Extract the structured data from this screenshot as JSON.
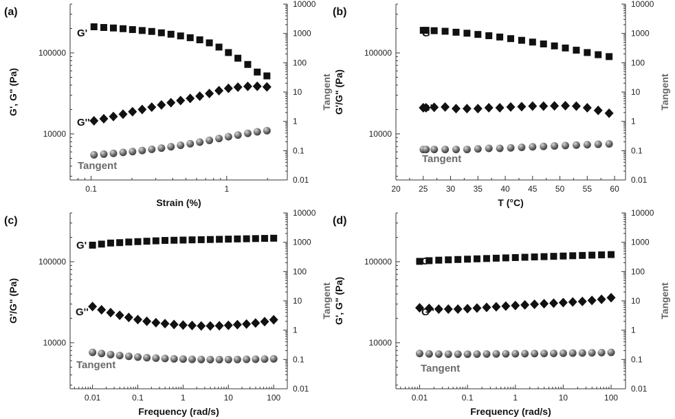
{
  "chart_data": [
    {
      "panel_label": "(a)",
      "type": "scatter",
      "xlabel": "Strain (%)",
      "ylabel": "G', G\" (Pa)",
      "y2label": "Tangent",
      "xscale": "log",
      "yscale": "log",
      "y2scale": "log",
      "xlim": [
        0.07,
        2.8
      ],
      "ylim": [
        2700,
        400000
      ],
      "y2lim": [
        0.01,
        10000
      ],
      "xticks": [
        0.1,
        1
      ],
      "xtick_labels": [
        "0.1",
        "1"
      ],
      "yticks": [
        10000,
        100000
      ],
      "ytick_labels": [
        "10000",
        "100000"
      ],
      "y2ticks": [
        0.01,
        0.1,
        1,
        10,
        100,
        1000,
        10000
      ],
      "y2tick_labels": [
        "0.01",
        "0.1",
        "1",
        "10",
        "100",
        "1000",
        "10000"
      ],
      "x": [
        0.105,
        0.124,
        0.146,
        0.172,
        0.202,
        0.238,
        0.28,
        0.33,
        0.388,
        0.457,
        0.538,
        0.633,
        0.745,
        0.877,
        1.03,
        1.21,
        1.43,
        1.68,
        1.98
      ],
      "series": [
        {
          "name": "G'",
          "marker": "square",
          "axis": "left",
          "values": [
            210000,
            206000,
            203000,
            199000,
            194000,
            189000,
            184000,
            177000,
            170000,
            162000,
            154000,
            145000,
            133000,
            118000,
            101000,
            86000,
            72000,
            58000,
            52000
          ]
        },
        {
          "name": "G''",
          "marker": "diamond",
          "axis": "left",
          "values": [
            14500,
            15400,
            16400,
            17500,
            18800,
            20000,
            21400,
            22800,
            24300,
            25800,
            27400,
            29200,
            31500,
            34200,
            36500,
            37800,
            38600,
            38700,
            38000
          ]
        },
        {
          "name": "Tangent",
          "marker": "sphere",
          "axis": "right",
          "values": [
            0.072,
            0.076,
            0.081,
            0.087,
            0.093,
            0.101,
            0.111,
            0.122,
            0.136,
            0.153,
            0.172,
            0.196,
            0.225,
            0.26,
            0.3,
            0.34,
            0.39,
            0.44,
            0.48
          ]
        }
      ],
      "annotations": [
        "G'",
        "G''",
        "Tangent"
      ]
    },
    {
      "panel_label": "(b)",
      "type": "scatter",
      "xlabel": "T (°C)",
      "ylabel": "G'/G\" (Pa)",
      "y2label": "Tangent",
      "xscale": "linear",
      "yscale": "log",
      "y2scale": "log",
      "xlim": [
        20,
        62
      ],
      "ylim": [
        2700,
        400000
      ],
      "y2lim": [
        0.01,
        10000
      ],
      "xticks": [
        20,
        25,
        30,
        35,
        40,
        45,
        50,
        55,
        60
      ],
      "xtick_labels": [
        "20",
        "25",
        "30",
        "35",
        "40",
        "45",
        "50",
        "55",
        "60"
      ],
      "yticks": [
        10000,
        100000
      ],
      "ytick_labels": [
        "10000",
        "100000"
      ],
      "y2ticks": [
        0.01,
        0.1,
        1,
        10,
        100,
        1000,
        10000
      ],
      "y2tick_labels": [
        "0.01",
        "0.1",
        "1",
        "10",
        "100",
        "1000",
        "10000"
      ],
      "x": [
        25,
        25.5,
        27,
        29,
        31,
        33,
        35,
        37,
        39,
        41,
        43,
        45,
        47,
        49,
        51,
        53,
        55,
        57,
        59
      ],
      "series": [
        {
          "name": "G'",
          "marker": "square",
          "axis": "left",
          "values": [
            190000,
            190000,
            188000,
            185000,
            180000,
            175000,
            169000,
            163000,
            157000,
            150000,
            143000,
            136000,
            129000,
            122000,
            115000,
            108000,
            101000,
            95000,
            90000
          ]
        },
        {
          "name": "G''",
          "marker": "diamond",
          "axis": "left",
          "values": [
            21000,
            21000,
            21300,
            21500,
            20500,
            20500,
            20500,
            21000,
            21000,
            21500,
            21700,
            22000,
            22000,
            22200,
            22300,
            22000,
            21000,
            19500,
            18000
          ]
        },
        {
          "name": "Tangent",
          "marker": "sphere",
          "axis": "right",
          "values": [
            0.11,
            0.11,
            0.11,
            0.11,
            0.11,
            0.11,
            0.115,
            0.12,
            0.12,
            0.125,
            0.13,
            0.135,
            0.14,
            0.145,
            0.15,
            0.155,
            0.16,
            0.165,
            0.17
          ]
        }
      ],
      "annotations": [
        "G'",
        "G''",
        "Tangent"
      ]
    },
    {
      "panel_label": "(c)",
      "type": "scatter",
      "xlabel": "Frequency (rad/s)",
      "ylabel": "G'/G\" (Pa)",
      "y2label": "Tangent",
      "xscale": "log",
      "yscale": "log",
      "y2scale": "log",
      "xlim": [
        0.0032,
        200
      ],
      "ylim": [
        2700,
        400000
      ],
      "y2lim": [
        0.01,
        10000
      ],
      "xticks": [
        0.01,
        0.1,
        1,
        10,
        100
      ],
      "xtick_labels": [
        "0.01",
        "0.1",
        "1",
        "10",
        "100"
      ],
      "yticks": [
        10000,
        100000
      ],
      "ytick_labels": [
        "10000",
        "100000"
      ],
      "y2ticks": [
        0.01,
        0.1,
        1,
        10,
        100,
        1000,
        10000
      ],
      "y2tick_labels": [
        "0.01",
        "0.1",
        "1",
        "10",
        "100",
        "1000",
        "10000"
      ],
      "x": [
        0.01,
        0.0158,
        0.0251,
        0.0398,
        0.0631,
        0.1,
        0.158,
        0.251,
        0.398,
        0.631,
        1,
        1.58,
        2.51,
        3.98,
        6.31,
        10,
        15.8,
        25.1,
        39.8,
        63.1,
        100
      ],
      "series": [
        {
          "name": "G'",
          "marker": "square",
          "axis": "left",
          "values": [
            160000,
            165000,
            170000,
            172000,
            175000,
            177000,
            179000,
            181000,
            183000,
            184000,
            185000,
            186000,
            187000,
            188000,
            189000,
            190000,
            191000,
            192000,
            193000,
            194000,
            195000
          ]
        },
        {
          "name": "G''",
          "marker": "diamond",
          "axis": "left",
          "values": [
            28000,
            25500,
            23500,
            21800,
            20500,
            19300,
            18400,
            17700,
            17200,
            16800,
            16500,
            16300,
            16100,
            16100,
            16200,
            16400,
            16700,
            17000,
            17500,
            18200,
            19200
          ]
        },
        {
          "name": "Tangent",
          "marker": "sphere",
          "axis": "right",
          "values": [
            0.175,
            0.16,
            0.147,
            0.136,
            0.128,
            0.121,
            0.115,
            0.111,
            0.108,
            0.105,
            0.103,
            0.101,
            0.1,
            0.099,
            0.099,
            0.099,
            0.1,
            0.101,
            0.102,
            0.103,
            0.105
          ]
        }
      ],
      "annotations": [
        "G'",
        "G''",
        "Tangent"
      ]
    },
    {
      "panel_label": "(d)",
      "type": "scatter",
      "xlabel": "Frequency (rad/s)",
      "ylabel": "G', G\" (Pa)",
      "y2label": "Tangent",
      "xscale": "log",
      "yscale": "log",
      "y2scale": "log",
      "xlim": [
        0.0032,
        200
      ],
      "ylim": [
        2700,
        400000
      ],
      "y2lim": [
        0.01,
        10000
      ],
      "xticks": [
        0.01,
        0.1,
        1,
        10,
        100
      ],
      "xtick_labels": [
        "0.01",
        "0.1",
        "1",
        "10",
        "100"
      ],
      "yticks": [
        10000,
        100000
      ],
      "ytick_labels": [
        "10000",
        "100000"
      ],
      "y2ticks": [
        0.01,
        0.1,
        1,
        10,
        100,
        1000,
        10000
      ],
      "y2tick_labels": [
        "0.01",
        "0.1",
        "1",
        "10",
        "100",
        "1000",
        "10000"
      ],
      "x": [
        0.01,
        0.0158,
        0.0251,
        0.0398,
        0.0631,
        0.1,
        0.158,
        0.251,
        0.398,
        0.631,
        1,
        1.58,
        2.51,
        3.98,
        6.31,
        10,
        15.8,
        25.1,
        39.8,
        63.1,
        100
      ],
      "series": [
        {
          "name": "G'",
          "marker": "square",
          "axis": "left",
          "values": [
            101000,
            103000,
            104500,
            105500,
            106500,
            107500,
            108500,
            109500,
            110500,
            111500,
            112500,
            113500,
            114500,
            115500,
            116500,
            117500,
            118500,
            119500,
            120500,
            121500,
            122500
          ]
        },
        {
          "name": "G''",
          "marker": "diamond",
          "axis": "left",
          "values": [
            27000,
            26500,
            26000,
            26000,
            26000,
            26300,
            26800,
            27300,
            27800,
            28300,
            28800,
            29300,
            29800,
            30300,
            30800,
            31300,
            31800,
            32300,
            33300,
            34300,
            36000
          ]
        },
        {
          "name": "Tangent",
          "marker": "sphere",
          "axis": "right",
          "values": [
            0.16,
            0.155,
            0.153,
            0.152,
            0.152,
            0.152,
            0.153,
            0.154,
            0.155,
            0.156,
            0.157,
            0.158,
            0.159,
            0.16,
            0.161,
            0.163,
            0.165,
            0.167,
            0.169,
            0.171,
            0.175
          ]
        }
      ],
      "annotations": [
        "G'",
        "G''",
        "Tangent"
      ]
    }
  ]
}
